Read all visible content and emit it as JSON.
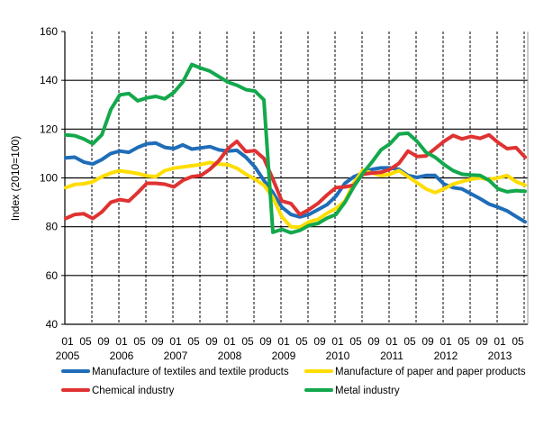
{
  "chart_data": {
    "type": "line",
    "title": "",
    "xlabel": "",
    "ylabel": "Index (2010=100)",
    "ylim": [
      40,
      160
    ],
    "yticks": [
      40,
      60,
      80,
      100,
      120,
      140,
      160
    ],
    "grid": true,
    "legend_position": "bottom",
    "x_start": "2005-01",
    "x_step_months": 2,
    "x_tick_labels": [
      {
        "month": 0,
        "label": "01",
        "year": "2005"
      },
      {
        "month": 4,
        "label": "05"
      },
      {
        "month": 8,
        "label": "09"
      },
      {
        "month": 12,
        "label": "01",
        "year": "2006"
      },
      {
        "month": 16,
        "label": "05"
      },
      {
        "month": 20,
        "label": "09"
      },
      {
        "month": 24,
        "label": "01",
        "year": "2007"
      },
      {
        "month": 28,
        "label": "05"
      },
      {
        "month": 32,
        "label": "09"
      },
      {
        "month": 36,
        "label": "01",
        "year": "2008"
      },
      {
        "month": 40,
        "label": "05"
      },
      {
        "month": 44,
        "label": "09"
      },
      {
        "month": 48,
        "label": "01",
        "year": "2009"
      },
      {
        "month": 52,
        "label": "05"
      },
      {
        "month": 56,
        "label": "09"
      },
      {
        "month": 60,
        "label": "01",
        "year": "2010"
      },
      {
        "month": 64,
        "label": "05"
      },
      {
        "month": 68,
        "label": "09"
      },
      {
        "month": 72,
        "label": "01",
        "year": "2011"
      },
      {
        "month": 76,
        "label": "05"
      },
      {
        "month": 80,
        "label": "09"
      },
      {
        "month": 84,
        "label": "01",
        "year": "2012"
      },
      {
        "month": 88,
        "label": "05"
      },
      {
        "month": 92,
        "label": "09"
      },
      {
        "month": 96,
        "label": "01",
        "year": "2013"
      },
      {
        "month": 100,
        "label": "05"
      }
    ],
    "series": [
      {
        "name": "Manufacture of textiles and textile products",
        "color": "#1f6db8",
        "values": [
          108.2,
          108.5,
          106.5,
          105.7,
          107.5,
          110,
          111,
          110.5,
          112.5,
          114,
          114.3,
          112.5,
          112,
          113.5,
          111.8,
          112.3,
          112.8,
          111.5,
          111,
          111.3,
          108.5,
          104.5,
          99,
          94,
          88,
          85,
          84,
          85,
          87,
          89,
          92.5,
          97.8,
          100.5,
          102,
          103.5,
          104.1,
          104.1,
          103.5,
          101,
          100.2,
          101,
          101,
          97.5,
          96,
          95.5,
          93.5,
          91.5,
          89.3,
          88,
          86.5,
          84.2,
          82
        ]
      },
      {
        "name": "Manufacture of paper and paper products",
        "color": "#ffdd00",
        "values": [
          96,
          97.3,
          97.6,
          98.4,
          100.5,
          102,
          102.9,
          102.4,
          101.8,
          100.8,
          100.5,
          103,
          104,
          104.5,
          105,
          105.5,
          106.3,
          105.6,
          105.4,
          104,
          101.5,
          99.5,
          97,
          92,
          84,
          80,
          79.8,
          82,
          83,
          85.5,
          87.5,
          90.5,
          98,
          103.2,
          102,
          101,
          101.5,
          103,
          100.5,
          98,
          95.5,
          94,
          95.5,
          97.5,
          98.5,
          99.5,
          100,
          99.3,
          100,
          101,
          98.5,
          97
        ]
      },
      {
        "name": "Chemical industry",
        "color": "#e03232",
        "values": [
          83.4,
          85,
          85.3,
          83.4,
          86,
          90,
          91.1,
          90.5,
          94,
          97.8,
          97.8,
          97.4,
          96.3,
          99,
          100.5,
          101,
          103.5,
          107,
          112,
          115,
          110.8,
          111.2,
          108,
          99.5,
          90.5,
          89.5,
          85,
          87,
          89.5,
          93,
          96,
          96.3,
          97,
          101.5,
          102,
          102.3,
          103.5,
          106,
          111,
          108.8,
          109,
          112,
          115,
          117.4,
          116,
          117,
          116.2,
          117.6,
          114.5,
          112,
          112.4,
          108.5
        ]
      },
      {
        "name": "Metal industry",
        "color": "#13a84c",
        "values": [
          117.6,
          117.3,
          116,
          114,
          117.6,
          128,
          134,
          134.6,
          131.6,
          132.8,
          133.4,
          132.4,
          135,
          139.3,
          146.5,
          145,
          143.8,
          141.5,
          139.3,
          138,
          136.2,
          135.6,
          132,
          77.7,
          78.9,
          77.5,
          78.5,
          80.5,
          81.3,
          83.5,
          85,
          90,
          96.5,
          102,
          106.5,
          111.5,
          114,
          118,
          118.3,
          115,
          110.5,
          108.5,
          105.5,
          103,
          101.5,
          101.2,
          101,
          99,
          95.5,
          94.3,
          94.8,
          94.5
        ]
      }
    ]
  }
}
